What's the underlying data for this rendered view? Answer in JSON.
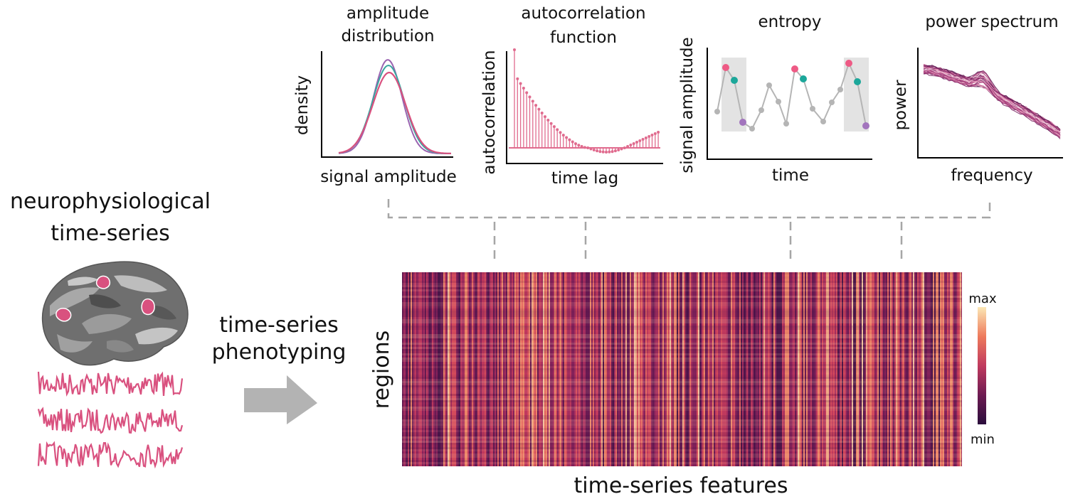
{
  "left": {
    "title_line1": "neurophysiological",
    "title_line2": "time-series"
  },
  "pipeline": {
    "step_line1": "time-series",
    "step_line2": "phenotyping"
  },
  "panels": {
    "amplitude": {
      "title_line1": "amplitude",
      "title_line2": "distribution",
      "xlabel": "signal amplitude",
      "ylabel": "density"
    },
    "autocorrelation": {
      "title_line1": "autocorrelation",
      "title_line2": "function",
      "xlabel": "time lag",
      "ylabel": "autocorrelation"
    },
    "entropy": {
      "title": "entropy",
      "xlabel": "time",
      "ylabel": "signal amplitude"
    },
    "power": {
      "title": "power spectrum",
      "xlabel": "frequency",
      "ylabel": "power"
    }
  },
  "heatmap": {
    "xlabel": "time-series features",
    "ylabel": "regions",
    "colorbar_max": "max",
    "colorbar_min": "min"
  },
  "colors": {
    "signal_pink": "#d9517f",
    "kde_teal": "#3aa6a0",
    "kde_purple": "#9a63b0",
    "entropy_grey": "#b5b5b5",
    "entropy_pink": "#ee5a85",
    "entropy_teal": "#1ca79a",
    "entropy_purple": "#a274bd",
    "connector": "#a6a6a6",
    "arrow": "#b3b3b3"
  }
}
